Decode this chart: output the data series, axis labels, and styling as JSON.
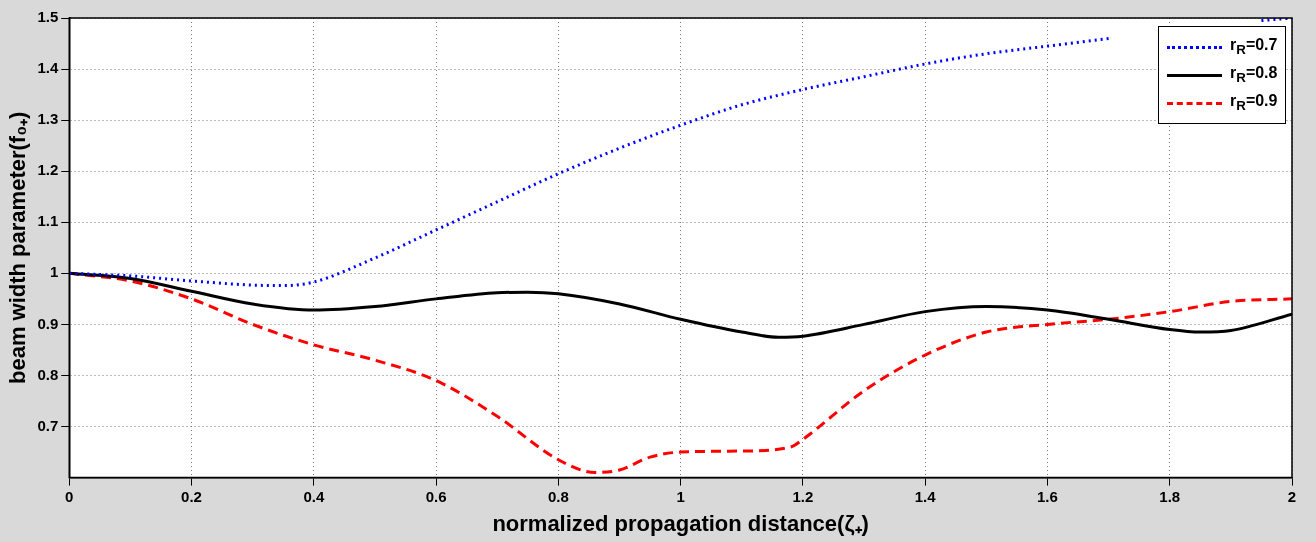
{
  "chart_data": {
    "type": "line",
    "xlabel": "normalized propagation distance(ζ₊)",
    "ylabel": "beam width parameter(f₀₊)",
    "xlim": [
      0,
      2
    ],
    "ylim": [
      0.6,
      1.5
    ],
    "xticks": [
      0,
      0.2,
      0.4,
      0.6,
      0.8,
      1,
      1.2,
      1.4,
      1.6,
      1.8,
      2
    ],
    "yticks": [
      0.7,
      0.8,
      0.9,
      1,
      1.1,
      1.2,
      1.3,
      1.4,
      1.5
    ],
    "grid": true,
    "legend": "top right",
    "marker": "none",
    "series": [
      {
        "name": "r$_{R}$=0.7",
        "color": "#0000ff",
        "line_style": "dotted",
        "x": [
          0,
          0.1,
          0.2,
          0.3,
          0.35,
          0.4,
          0.5,
          0.6,
          0.7,
          0.8,
          0.9,
          1,
          1.1,
          1.2,
          1.3,
          1.4,
          1.5,
          1.6,
          1.7,
          1.8,
          1.95,
          2
        ],
        "values": [
          1,
          0.995,
          0.985,
          0.977,
          0.976,
          0.983,
          1.03,
          1.085,
          1.14,
          1.195,
          1.245,
          1.29,
          1.33,
          1.36,
          1.385,
          1.41,
          1.43,
          1.445,
          1.46,
          null,
          1.495,
          1.5
        ]
      },
      {
        "name": "r$_{R}$=0.8",
        "color": "#000000",
        "line_style": "solid",
        "x": [
          0,
          0.1,
          0.2,
          0.3,
          0.4,
          0.5,
          0.6,
          0.7,
          0.75,
          0.8,
          0.9,
          1,
          1.1,
          1.16,
          1.2,
          1.3,
          1.4,
          1.5,
          1.6,
          1.7,
          1.8,
          1.85,
          1.9,
          2
        ],
        "values": [
          1,
          0.99,
          0.965,
          0.94,
          0.928,
          0.935,
          0.95,
          0.962,
          0.963,
          0.96,
          0.94,
          0.91,
          0.885,
          0.875,
          0.877,
          0.9,
          0.925,
          0.935,
          0.928,
          0.91,
          0.89,
          0.885,
          0.888,
          0.92
        ]
      },
      {
        "name": "r$_{R}$=0.9",
        "color": "#ff0000",
        "line_style": "dashed",
        "x": [
          0,
          0.1,
          0.2,
          0.3,
          0.4,
          0.5,
          0.6,
          0.7,
          0.8,
          0.86,
          0.9,
          0.95,
          1,
          1.1,
          1.18,
          1.2,
          1.3,
          1.4,
          1.5,
          1.6,
          1.7,
          1.8,
          1.9,
          2
        ],
        "values": [
          1,
          0.985,
          0.95,
          0.9,
          0.86,
          0.83,
          0.79,
          0.72,
          0.635,
          0.61,
          0.615,
          0.64,
          0.65,
          0.652,
          0.66,
          0.675,
          0.77,
          0.84,
          0.885,
          0.9,
          0.91,
          0.925,
          0.945,
          0.95
        ]
      }
    ]
  }
}
